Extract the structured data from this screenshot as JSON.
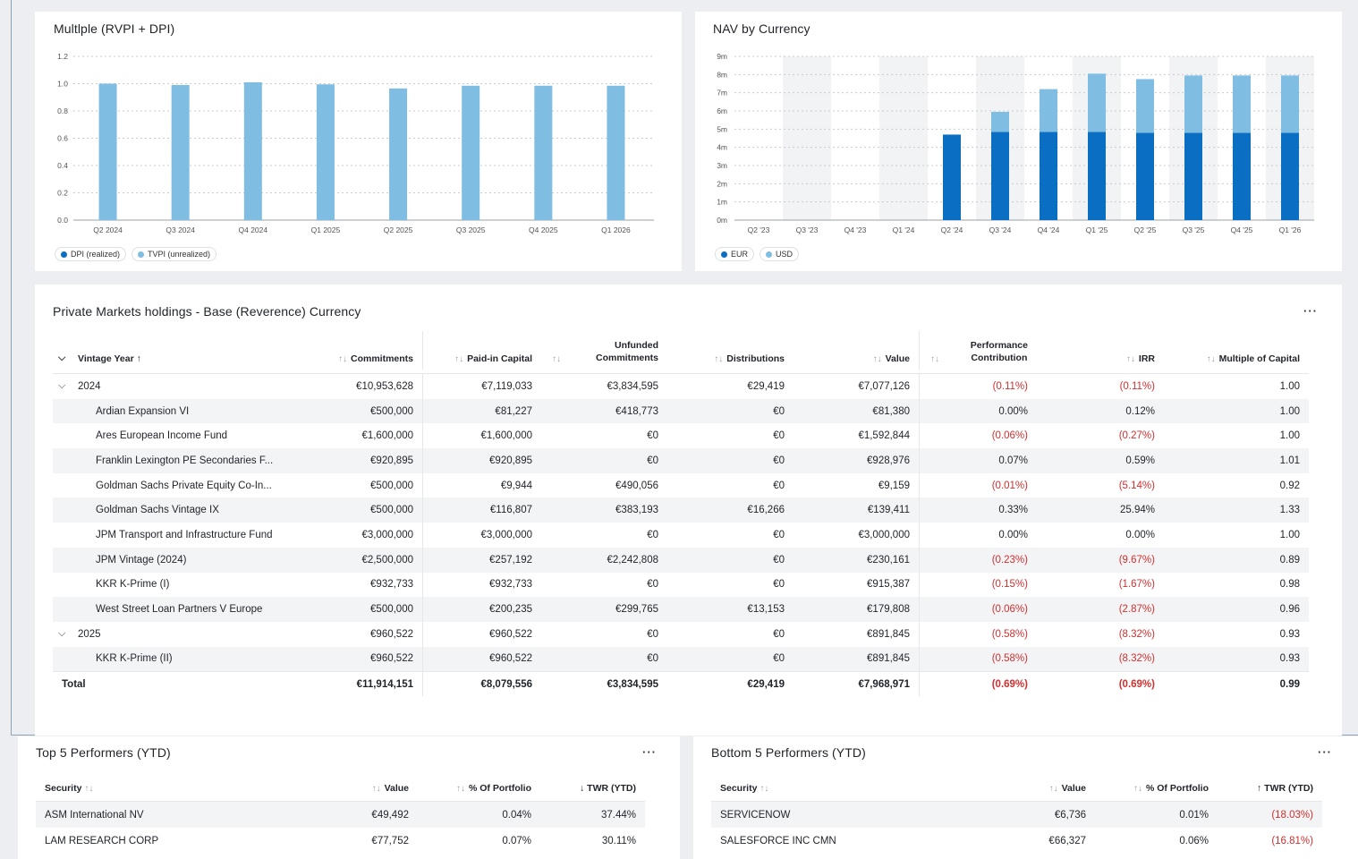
{
  "multiple_card": {
    "title": "Multlple (RVPI + DPI)",
    "legend": [
      {
        "label": "DPI (realized)",
        "color": "#0a6fc2"
      },
      {
        "label": "TVPI (unrealized)",
        "color": "#7fbde3"
      }
    ]
  },
  "nav_card": {
    "title": "NAV by Currency",
    "legend": [
      {
        "label": "EUR",
        "color": "#0a6fc2"
      },
      {
        "label": "USD",
        "color": "#7fbde3"
      }
    ]
  },
  "chart_data": [
    {
      "type": "bar",
      "title": "Multlple (RVPI + DPI)",
      "categories": [
        "Q2 2024",
        "Q3 2024",
        "Q4 2024",
        "Q1 2025",
        "Q2 2025",
        "Q3 2025",
        "Q4 2025",
        "Q1 2026"
      ],
      "series": [
        {
          "name": "TVPI (unrealized)",
          "values": [
            1.0,
            0.99,
            1.01,
            0.995,
            0.965,
            0.985,
            0.985,
            0.985
          ]
        }
      ],
      "yticks": [
        "0.0",
        "0.2",
        "0.4",
        "0.6",
        "0.8",
        "1.0",
        "1.2"
      ],
      "ylim": [
        0,
        1.2
      ],
      "grid": true
    },
    {
      "type": "bar",
      "stacked": true,
      "title": "NAV by Currency",
      "categories": [
        "Q2 '23",
        "Q3 '23",
        "Q4 '23",
        "Q1 '24",
        "Q2 '24",
        "Q3 '24",
        "Q4 '24",
        "Q1 '25",
        "Q2 '25",
        "Q3 '25",
        "Q4 '25",
        "Q1 '26"
      ],
      "series": [
        {
          "name": "EUR",
          "values": [
            0,
            0,
            0,
            0,
            4.7,
            4.85,
            4.85,
            4.85,
            4.8,
            4.8,
            4.8,
            4.8
          ]
        },
        {
          "name": "USD",
          "values": [
            0,
            0,
            0,
            0,
            0,
            1.1,
            2.35,
            3.2,
            2.95,
            3.15,
            3.15,
            3.15
          ]
        }
      ],
      "yticks": [
        "0m",
        "1m",
        "2m",
        "3m",
        "4m",
        "5m",
        "6m",
        "7m",
        "8m",
        "9m"
      ],
      "ylim": [
        0,
        9
      ],
      "grid": true
    }
  ],
  "holdings": {
    "title": "Private Markets holdings - Base (Reverence) Currency",
    "more": "···",
    "headers": {
      "vintage": "Vintage Year",
      "vintage_sort": "↑",
      "commitments": "Commitments",
      "paid_in": "Paid-in Capital",
      "unfunded_1": "Unfunded",
      "unfunded_2": "Commitments",
      "distributions": "Distributions",
      "value": "Value",
      "perf_1": "Performance",
      "perf_2": "Contribution",
      "irr": "IRR",
      "moc": "Multiple of Capital",
      "sort_icon": "↑↓"
    },
    "rows": [
      {
        "kind": "group",
        "name": "2024",
        "commitments": "€10,953,628",
        "paid_in": "€7,119,033",
        "unfunded": "€3,834,595",
        "distributions": "€29,419",
        "value": "€7,077,126",
        "perf": "(0.11%)",
        "irr": "(0.11%)",
        "moc": "1.00"
      },
      {
        "kind": "item",
        "name": "Ardian Expansion VI",
        "commitments": "€500,000",
        "paid_in": "€81,227",
        "unfunded": "€418,773",
        "distributions": "€0",
        "value": "€81,380",
        "perf": "0.00%",
        "irr": "0.12%",
        "moc": "1.00"
      },
      {
        "kind": "item",
        "name": "Ares European Income Fund",
        "commitments": "€1,600,000",
        "paid_in": "€1,600,000",
        "unfunded": "€0",
        "distributions": "€0",
        "value": "€1,592,844",
        "perf": "(0.06%)",
        "irr": "(0.27%)",
        "moc": "1.00"
      },
      {
        "kind": "item",
        "name": "Franklin Lexington PE Secondaries F...",
        "commitments": "€920,895",
        "paid_in": "€920,895",
        "unfunded": "€0",
        "distributions": "€0",
        "value": "€928,976",
        "perf": "0.07%",
        "irr": "0.59%",
        "moc": "1.01"
      },
      {
        "kind": "item",
        "name": "Goldman Sachs Private Equity Co-In...",
        "commitments": "€500,000",
        "paid_in": "€9,944",
        "unfunded": "€490,056",
        "distributions": "€0",
        "value": "€9,159",
        "perf": "(0.01%)",
        "irr": "(5.14%)",
        "moc": "0.92"
      },
      {
        "kind": "item",
        "name": "Goldman Sachs Vintage IX",
        "commitments": "€500,000",
        "paid_in": "€116,807",
        "unfunded": "€383,193",
        "distributions": "€16,266",
        "value": "€139,411",
        "perf": "0.33%",
        "irr": "25.94%",
        "moc": "1.33"
      },
      {
        "kind": "item",
        "name": "JPM Transport and Infrastructure Fund",
        "commitments": "€3,000,000",
        "paid_in": "€3,000,000",
        "unfunded": "€0",
        "distributions": "€0",
        "value": "€3,000,000",
        "perf": "0.00%",
        "irr": "0.00%",
        "moc": "1.00"
      },
      {
        "kind": "item",
        "name": "JPM Vintage (2024)",
        "commitments": "€2,500,000",
        "paid_in": "€257,192",
        "unfunded": "€2,242,808",
        "distributions": "€0",
        "value": "€230,161",
        "perf": "(0.23%)",
        "irr": "(9.67%)",
        "moc": "0.89"
      },
      {
        "kind": "item",
        "name": "KKR K-Prime (I)",
        "commitments": "€932,733",
        "paid_in": "€932,733",
        "unfunded": "€0",
        "distributions": "€0",
        "value": "€915,387",
        "perf": "(0.15%)",
        "irr": "(1.67%)",
        "moc": "0.98"
      },
      {
        "kind": "item",
        "name": "West Street Loan Partners V Europe",
        "commitments": "€500,000",
        "paid_in": "€200,235",
        "unfunded": "€299,765",
        "distributions": "€13,153",
        "value": "€179,808",
        "perf": "(0.06%)",
        "irr": "(2.87%)",
        "moc": "0.96"
      },
      {
        "kind": "group",
        "name": "2025",
        "commitments": "€960,522",
        "paid_in": "€960,522",
        "unfunded": "€0",
        "distributions": "€0",
        "value": "€891,845",
        "perf": "(0.58%)",
        "irr": "(8.32%)",
        "moc": "0.93"
      },
      {
        "kind": "item",
        "name": "KKR K-Prime (II)",
        "commitments": "€960,522",
        "paid_in": "€960,522",
        "unfunded": "€0",
        "distributions": "€0",
        "value": "€891,845",
        "perf": "(0.58%)",
        "irr": "(8.32%)",
        "moc": "0.93"
      },
      {
        "kind": "total",
        "name": "Total",
        "commitments": "€11,914,151",
        "paid_in": "€8,079,556",
        "unfunded": "€3,834,595",
        "distributions": "€29,419",
        "value": "€7,968,971",
        "perf": "(0.69%)",
        "irr": "(0.69%)",
        "moc": "0.99"
      }
    ]
  },
  "top5": {
    "title": "Top 5 Performers (YTD)",
    "more": "···",
    "headers": {
      "security": "Security",
      "value": "Value",
      "pct": "% Of Portfolio",
      "twr": "TWR (YTD)",
      "twr_sort": "↓",
      "sort_icon": "↑↓"
    },
    "rows": [
      {
        "security": "ASM International NV",
        "value": "€49,492",
        "pct": "0.04%",
        "twr": "37.44%"
      },
      {
        "security": "LAM RESEARCH CORP",
        "value": "€77,752",
        "pct": "0.07%",
        "twr": "30.11%"
      }
    ]
  },
  "bottom5": {
    "title": "Bottom 5 Performers (YTD)",
    "more": "···",
    "headers": {
      "security": "Security",
      "value": "Value",
      "pct": "% Of Portfolio",
      "twr": "TWR (YTD)",
      "twr_sort": "↑",
      "sort_icon": "↑↓"
    },
    "rows": [
      {
        "security": "SERVICENOW",
        "value": "€6,736",
        "pct": "0.01%",
        "twr": "(18.03%)"
      },
      {
        "security": "SALESFORCE INC CMN",
        "value": "€66,327",
        "pct": "0.06%",
        "twr": "(16.81%)"
      }
    ]
  }
}
